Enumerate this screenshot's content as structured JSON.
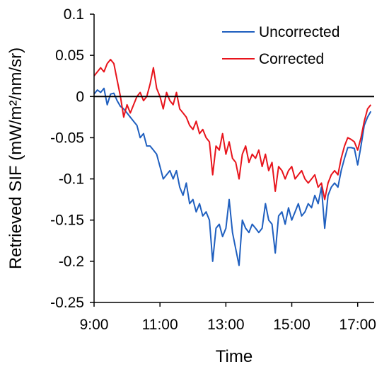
{
  "chart_data": {
    "type": "line",
    "title": "",
    "xlabel": "Time",
    "ylabel": "Retrieved SIF (mW/m²/nm/sr)",
    "xlim": [
      9.0,
      17.5
    ],
    "ylim": [
      -0.25,
      0.1
    ],
    "x_ticks": [
      9,
      11,
      13,
      15,
      17
    ],
    "x_tick_labels": [
      "9:00",
      "11:00",
      "13:00",
      "15:00",
      "17:00"
    ],
    "y_ticks": [
      0.1,
      0.05,
      0,
      -0.05,
      -0.1,
      -0.15,
      -0.2,
      -0.25
    ],
    "y_tick_labels": [
      "0.1",
      "0.05",
      "0",
      "-0.05",
      "-0.1",
      "-0.15",
      "-0.2",
      "-0.25"
    ],
    "reference_line_y": 0,
    "grid": false,
    "legend_position": "top-right",
    "x_unit": "hour of day",
    "series": [
      {
        "name": "Uncorrected",
        "color": "#1f5fbf",
        "points": [
          [
            9.0,
            0.003
          ],
          [
            9.1,
            0.008
          ],
          [
            9.2,
            0.005
          ],
          [
            9.3,
            0.01
          ],
          [
            9.4,
            -0.01
          ],
          [
            9.5,
            0.003
          ],
          [
            9.6,
            0.004
          ],
          [
            9.7,
            -0.005
          ],
          [
            9.8,
            -0.012
          ],
          [
            9.9,
            -0.015
          ],
          [
            10.0,
            -0.02
          ],
          [
            10.1,
            -0.025
          ],
          [
            10.2,
            -0.03
          ],
          [
            10.3,
            -0.035
          ],
          [
            10.4,
            -0.05
          ],
          [
            10.5,
            -0.045
          ],
          [
            10.6,
            -0.06
          ],
          [
            10.7,
            -0.06
          ],
          [
            10.8,
            -0.065
          ],
          [
            10.9,
            -0.07
          ],
          [
            11.0,
            -0.085
          ],
          [
            11.1,
            -0.1
          ],
          [
            11.2,
            -0.095
          ],
          [
            11.3,
            -0.09
          ],
          [
            11.4,
            -0.1
          ],
          [
            11.5,
            -0.09
          ],
          [
            11.6,
            -0.11
          ],
          [
            11.7,
            -0.12
          ],
          [
            11.8,
            -0.105
          ],
          [
            11.9,
            -0.13
          ],
          [
            12.0,
            -0.125
          ],
          [
            12.1,
            -0.14
          ],
          [
            12.2,
            -0.13
          ],
          [
            12.3,
            -0.145
          ],
          [
            12.4,
            -0.14
          ],
          [
            12.5,
            -0.15
          ],
          [
            12.6,
            -0.2
          ],
          [
            12.7,
            -0.16
          ],
          [
            12.8,
            -0.155
          ],
          [
            12.9,
            -0.17
          ],
          [
            13.0,
            -0.16
          ],
          [
            13.1,
            -0.125
          ],
          [
            13.2,
            -0.165
          ],
          [
            13.3,
            -0.185
          ],
          [
            13.4,
            -0.205
          ],
          [
            13.5,
            -0.15
          ],
          [
            13.6,
            -0.16
          ],
          [
            13.7,
            -0.165
          ],
          [
            13.8,
            -0.155
          ],
          [
            13.9,
            -0.16
          ],
          [
            14.0,
            -0.165
          ],
          [
            14.1,
            -0.16
          ],
          [
            14.2,
            -0.13
          ],
          [
            14.3,
            -0.15
          ],
          [
            14.4,
            -0.155
          ],
          [
            14.5,
            -0.19
          ],
          [
            14.6,
            -0.145
          ],
          [
            14.7,
            -0.14
          ],
          [
            14.8,
            -0.155
          ],
          [
            14.9,
            -0.135
          ],
          [
            15.0,
            -0.15
          ],
          [
            15.1,
            -0.14
          ],
          [
            15.2,
            -0.13
          ],
          [
            15.3,
            -0.145
          ],
          [
            15.4,
            -0.14
          ],
          [
            15.5,
            -0.13
          ],
          [
            15.6,
            -0.135
          ],
          [
            15.7,
            -0.12
          ],
          [
            15.8,
            -0.13
          ],
          [
            15.9,
            -0.11
          ],
          [
            16.0,
            -0.16
          ],
          [
            16.1,
            -0.12
          ],
          [
            16.2,
            -0.11
          ],
          [
            16.3,
            -0.105
          ],
          [
            16.4,
            -0.11
          ],
          [
            16.5,
            -0.09
          ],
          [
            16.6,
            -0.075
          ],
          [
            16.7,
            -0.062
          ],
          [
            16.8,
            -0.062
          ],
          [
            16.9,
            -0.063
          ],
          [
            17.0,
            -0.083
          ],
          [
            17.1,
            -0.06
          ],
          [
            17.2,
            -0.035
          ],
          [
            17.3,
            -0.025
          ],
          [
            17.4,
            -0.018
          ]
        ]
      },
      {
        "name": "Corrected",
        "color": "#e8141c",
        "points": [
          [
            9.0,
            0.025
          ],
          [
            9.1,
            0.03
          ],
          [
            9.2,
            0.035
          ],
          [
            9.3,
            0.03
          ],
          [
            9.4,
            0.04
          ],
          [
            9.5,
            0.045
          ],
          [
            9.6,
            0.04
          ],
          [
            9.7,
            0.02
          ],
          [
            9.8,
            0.0
          ],
          [
            9.9,
            -0.025
          ],
          [
            10.0,
            -0.01
          ],
          [
            10.1,
            -0.02
          ],
          [
            10.2,
            -0.01
          ],
          [
            10.3,
            0.0
          ],
          [
            10.4,
            0.005
          ],
          [
            10.5,
            -0.005
          ],
          [
            10.6,
            0.0
          ],
          [
            10.7,
            0.015
          ],
          [
            10.8,
            0.035
          ],
          [
            10.9,
            0.01
          ],
          [
            11.0,
            0.0
          ],
          [
            11.1,
            -0.015
          ],
          [
            11.2,
            0.005
          ],
          [
            11.3,
            -0.005
          ],
          [
            11.4,
            -0.01
          ],
          [
            11.5,
            0.005
          ],
          [
            11.6,
            -0.015
          ],
          [
            11.7,
            -0.02
          ],
          [
            11.8,
            -0.025
          ],
          [
            11.9,
            -0.035
          ],
          [
            12.0,
            -0.04
          ],
          [
            12.1,
            -0.03
          ],
          [
            12.2,
            -0.045
          ],
          [
            12.3,
            -0.04
          ],
          [
            12.4,
            -0.05
          ],
          [
            12.5,
            -0.055
          ],
          [
            12.6,
            -0.095
          ],
          [
            12.7,
            -0.06
          ],
          [
            12.8,
            -0.065
          ],
          [
            12.9,
            -0.045
          ],
          [
            13.0,
            -0.07
          ],
          [
            13.1,
            -0.055
          ],
          [
            13.2,
            -0.075
          ],
          [
            13.3,
            -0.08
          ],
          [
            13.4,
            -0.1
          ],
          [
            13.5,
            -0.07
          ],
          [
            13.6,
            -0.06
          ],
          [
            13.7,
            -0.08
          ],
          [
            13.8,
            -0.07
          ],
          [
            13.9,
            -0.075
          ],
          [
            14.0,
            -0.065
          ],
          [
            14.1,
            -0.085
          ],
          [
            14.2,
            -0.07
          ],
          [
            14.3,
            -0.09
          ],
          [
            14.4,
            -0.08
          ],
          [
            14.5,
            -0.115
          ],
          [
            14.6,
            -0.085
          ],
          [
            14.7,
            -0.09
          ],
          [
            14.8,
            -0.1
          ],
          [
            14.9,
            -0.09
          ],
          [
            15.0,
            -0.085
          ],
          [
            15.1,
            -0.1
          ],
          [
            15.2,
            -0.095
          ],
          [
            15.3,
            -0.09
          ],
          [
            15.4,
            -0.1
          ],
          [
            15.5,
            -0.105
          ],
          [
            15.6,
            -0.1
          ],
          [
            15.7,
            -0.095
          ],
          [
            15.8,
            -0.11
          ],
          [
            15.9,
            -0.105
          ],
          [
            16.0,
            -0.125
          ],
          [
            16.1,
            -0.105
          ],
          [
            16.2,
            -0.095
          ],
          [
            16.3,
            -0.09
          ],
          [
            16.4,
            -0.095
          ],
          [
            16.5,
            -0.075
          ],
          [
            16.6,
            -0.06
          ],
          [
            16.7,
            -0.05
          ],
          [
            16.8,
            -0.052
          ],
          [
            16.9,
            -0.055
          ],
          [
            17.0,
            -0.065
          ],
          [
            17.1,
            -0.05
          ],
          [
            17.2,
            -0.03
          ],
          [
            17.3,
            -0.015
          ],
          [
            17.4,
            -0.01
          ]
        ]
      }
    ]
  }
}
